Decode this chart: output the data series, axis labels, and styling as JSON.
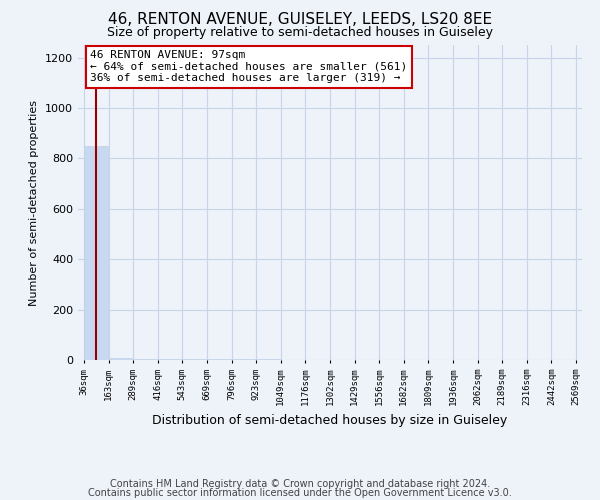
{
  "title": "46, RENTON AVENUE, GUISELEY, LEEDS, LS20 8EE",
  "subtitle": "Size of property relative to semi-detached houses in Guiseley",
  "xlabel": "Distribution of semi-detached houses by size in Guiseley",
  "ylabel": "Number of semi-detached properties",
  "property_size": 97,
  "annotation_text": "46 RENTON AVENUE: 97sqm\n← 64% of semi-detached houses are smaller (561)\n36% of semi-detached houses are larger (319) →",
  "footer1": "Contains HM Land Registry data © Crown copyright and database right 2024.",
  "footer2": "Contains public sector information licensed under the Open Government Licence v3.0.",
  "bin_edges": [
    36,
    163,
    289,
    416,
    543,
    669,
    796,
    923,
    1049,
    1176,
    1302,
    1429,
    1556,
    1682,
    1809,
    1936,
    2062,
    2189,
    2316,
    2442,
    2569
  ],
  "bar_heights": [
    850,
    8,
    5,
    4,
    3,
    3,
    2,
    2,
    1,
    1,
    1,
    1,
    1,
    1,
    1,
    1,
    1,
    1,
    1,
    1
  ],
  "bar_color": "#c6d9f0",
  "bar_edge_color": "#c0d0e8",
  "grid_color": "#c8d4e8",
  "background_color": "#eef2f9",
  "vline_color": "#990000",
  "annotation_box_facecolor": "#ffffff",
  "annotation_box_edgecolor": "#cc0000",
  "yticks": [
    0,
    200,
    400,
    600,
    800,
    1000,
    1200
  ],
  "ylim": [
    0,
    1250
  ],
  "title_fontsize": 11,
  "subtitle_fontsize": 9,
  "footer_fontsize": 7
}
